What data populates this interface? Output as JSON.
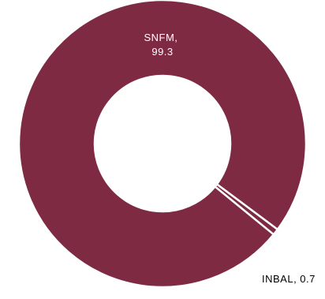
{
  "chart_data": {
    "type": "pie",
    "donut": true,
    "slices": [
      {
        "label": "SNFM",
        "value": 99.3,
        "color": "#7d2a42",
        "label_color": "#ffffff",
        "label_lines": [
          "SNFM,",
          "99.3"
        ]
      },
      {
        "label": "INBAL",
        "value": 0.7,
        "color": "#7d2a42",
        "label_color": "#000000",
        "label_lines": [
          "INBAL, 0.7"
        ]
      }
    ],
    "slice_border_color": "#ffffff",
    "legend": "none"
  }
}
